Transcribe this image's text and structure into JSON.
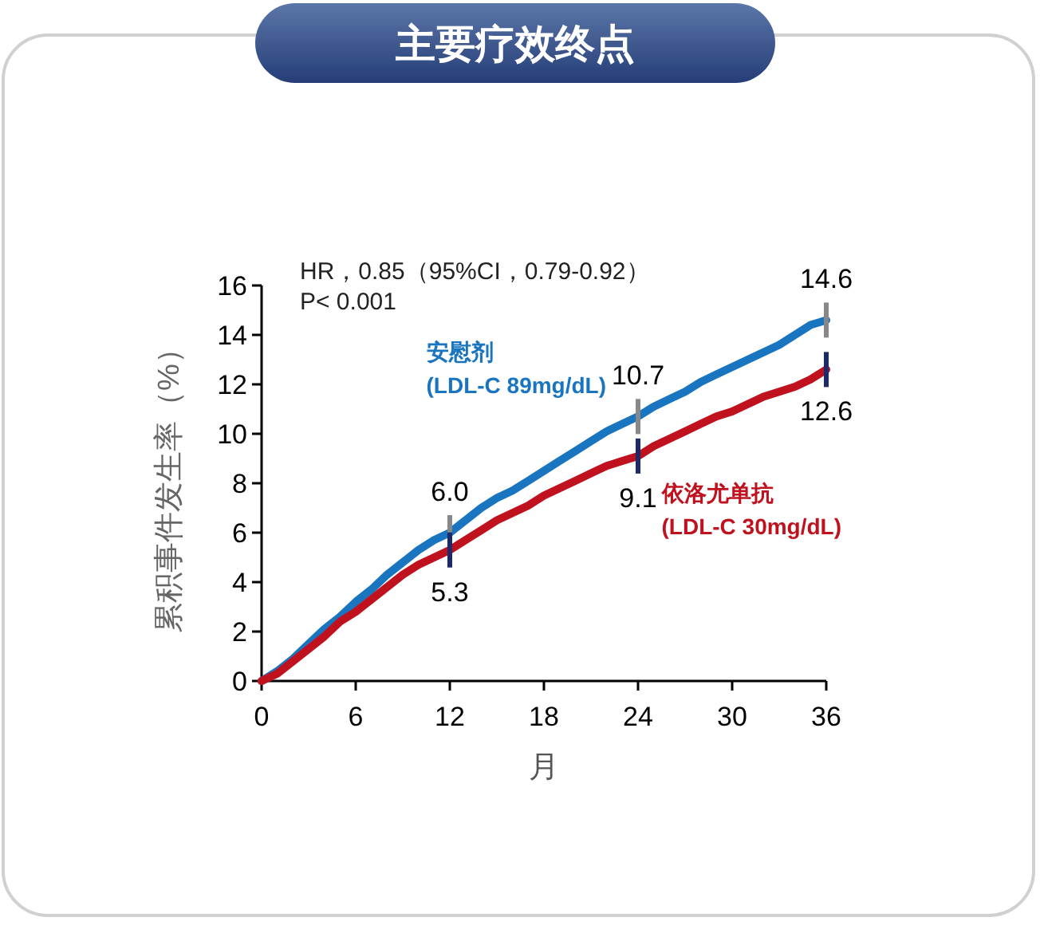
{
  "chart_data": {
    "type": "line",
    "title": "主要疗效终点",
    "xlabel": "月",
    "ylabel": "累积事件发生率（%）",
    "xlim": [
      0,
      36
    ],
    "xticks": [
      0,
      6,
      12,
      18,
      24,
      30,
      36
    ],
    "ylim": [
      0,
      16
    ],
    "yticks": [
      0,
      2,
      4,
      6,
      8,
      10,
      12,
      14,
      16
    ],
    "grid": false,
    "marker": "none",
    "line_style": "solid",
    "x": [
      0,
      1,
      2,
      3,
      4,
      5,
      6,
      7,
      8,
      9,
      10,
      11,
      12,
      13,
      14,
      15,
      16,
      17,
      18,
      19,
      20,
      21,
      22,
      23,
      24,
      25,
      26,
      27,
      28,
      29,
      30,
      31,
      32,
      33,
      34,
      35,
      36
    ],
    "series": [
      {
        "name": "安慰剂\n(LDL-C 89mg/dL)",
        "color": "#1a75c0",
        "values": [
          0,
          0.4,
          0.9,
          1.5,
          2.1,
          2.6,
          3.2,
          3.7,
          4.3,
          4.8,
          5.3,
          5.7,
          6.0,
          6.5,
          7.0,
          7.4,
          7.7,
          8.1,
          8.5,
          8.9,
          9.3,
          9.7,
          10.1,
          10.4,
          10.7,
          11.1,
          11.4,
          11.7,
          12.1,
          12.4,
          12.7,
          13.0,
          13.3,
          13.6,
          14.0,
          14.4,
          14.6
        ]
      },
      {
        "name": "依洛尤单抗\n(LDL-C 30mg/dL)",
        "color": "#c0121e",
        "values": [
          0,
          0.3,
          0.8,
          1.3,
          1.8,
          2.4,
          2.8,
          3.3,
          3.8,
          4.3,
          4.7,
          5.0,
          5.3,
          5.7,
          6.1,
          6.5,
          6.8,
          7.1,
          7.5,
          7.8,
          8.1,
          8.4,
          8.7,
          8.9,
          9.1,
          9.5,
          9.8,
          10.1,
          10.4,
          10.7,
          10.9,
          11.2,
          11.5,
          11.7,
          11.9,
          12.2,
          12.6
        ]
      }
    ],
    "annotations": [
      "HR，0.85（95%CI，0.79-0.92）",
      "P< 0.001",
      {
        "text": "6.0",
        "x": 12,
        "y": 6.0
      },
      {
        "text": "10.7",
        "x": 24,
        "y": 10.7
      },
      {
        "text": "14.6",
        "x": 36,
        "y": 14.6
      },
      {
        "text": "5.3",
        "x": 12,
        "y": 5.3
      },
      {
        "text": "9.1",
        "x": 24,
        "y": 9.1
      },
      {
        "text": "12.6",
        "x": 36,
        "y": 12.6
      }
    ]
  }
}
